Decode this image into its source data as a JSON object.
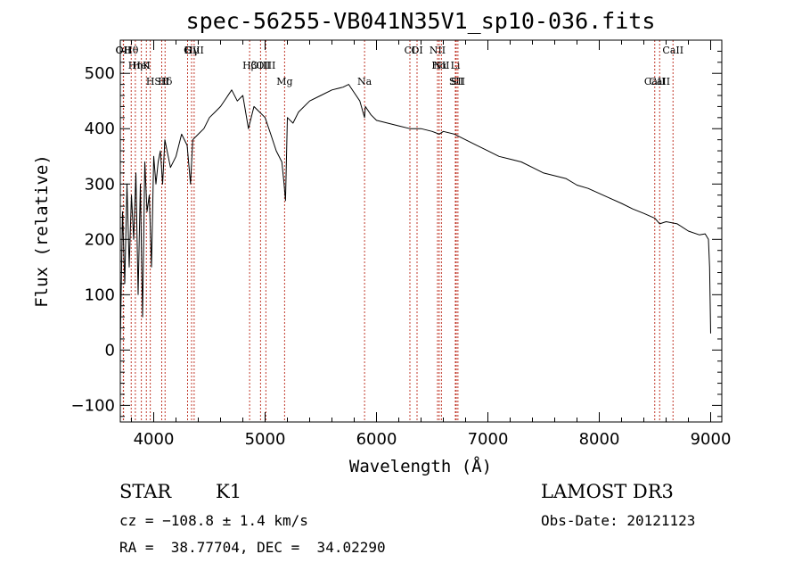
{
  "chart_data": {
    "type": "line",
    "title": "spec-56255-VB041N35V1_sp10-036.fits",
    "xlabel": "Wavelength (Å)",
    "ylabel": "Flux (relative)",
    "xlim": [
      3700,
      9100
    ],
    "ylim": [
      -130,
      560
    ],
    "xticks": [
      4000,
      5000,
      6000,
      7000,
      8000,
      9000
    ],
    "yticks": [
      -100,
      0,
      100,
      200,
      300,
      400,
      500
    ],
    "grid": false,
    "series": [
      {
        "name": "spectrum",
        "x": [
          3700,
          3720,
          3740,
          3760,
          3780,
          3800,
          3820,
          3840,
          3860,
          3880,
          3900,
          3920,
          3940,
          3960,
          3980,
          4000,
          4020,
          4040,
          4060,
          4080,
          4100,
          4150,
          4200,
          4250,
          4300,
          4330,
          4350,
          4400,
          4450,
          4500,
          4550,
          4600,
          4650,
          4700,
          4750,
          4800,
          4850,
          4900,
          4950,
          5000,
          5050,
          5100,
          5150,
          5170,
          5183,
          5200,
          5250,
          5300,
          5400,
          5500,
          5600,
          5700,
          5750,
          5800,
          5850,
          5893,
          5900,
          5950,
          6000,
          6100,
          6200,
          6300,
          6400,
          6500,
          6563,
          6600,
          6700,
          6800,
          6900,
          7000,
          7100,
          7200,
          7300,
          7400,
          7500,
          7600,
          7700,
          7800,
          7900,
          8000,
          8100,
          8200,
          8300,
          8400,
          8500,
          8542,
          8600,
          8700,
          8800,
          8900,
          8950,
          8980,
          8990,
          9000
        ],
        "y": [
          10,
          250,
          120,
          300,
          150,
          280,
          200,
          320,
          100,
          300,
          60,
          340,
          250,
          280,
          150,
          350,
          300,
          340,
          360,
          300,
          380,
          330,
          350,
          390,
          370,
          300,
          380,
          390,
          400,
          420,
          430,
          440,
          455,
          470,
          450,
          460,
          400,
          440,
          430,
          420,
          390,
          360,
          340,
          300,
          270,
          420,
          410,
          430,
          450,
          460,
          470,
          475,
          480,
          465,
          450,
          420,
          440,
          425,
          415,
          410,
          405,
          400,
          400,
          395,
          390,
          395,
          390,
          380,
          370,
          360,
          350,
          345,
          340,
          330,
          320,
          315,
          310,
          298,
          292,
          283,
          274,
          265,
          255,
          247,
          238,
          228,
          232,
          228,
          215,
          208,
          210,
          200,
          150,
          30
        ],
        "color": "#000000"
      }
    ],
    "line_labels": [
      {
        "label": "Hθ",
        "wavelength": 3798
      },
      {
        "label": "K",
        "wavelength": 3934
      },
      {
        "label": "Hδ",
        "wavelength": 4102
      },
      {
        "label": "OIII",
        "wavelength": 4363
      },
      {
        "label": "OIII",
        "wavelength": 4959
      },
      {
        "label": "CaII",
        "wavelength": 8542
      },
      {
        "label": "OII",
        "wavelength": 3727
      },
      {
        "label": "HeI",
        "wavelength": 3889
      },
      {
        "label": "SII",
        "wavelength": 4072
      },
      {
        "label": "Hγ",
        "wavelength": 4340
      },
      {
        "label": "OIII",
        "wavelength": 5007
      },
      {
        "label": "Na",
        "wavelength": 5893
      },
      {
        "label": "CI",
        "wavelength": 6300
      },
      {
        "label": "Hα",
        "wavelength": 6563
      },
      {
        "label": "SII",
        "wavelength": 6716
      },
      {
        "label": "NII",
        "wavelength": 6548
      },
      {
        "label": "Li",
        "wavelength": 6708
      },
      {
        "label": "CaII",
        "wavelength": 8498
      },
      {
        "label": "OII",
        "wavelength": 3729
      },
      {
        "label": "Hη",
        "wavelength": 3835
      },
      {
        "label": "H",
        "wavelength": 3969
      },
      {
        "label": "G",
        "wavelength": 4304
      },
      {
        "label": "Hβ",
        "wavelength": 4861
      },
      {
        "label": "Mg",
        "wavelength": 5175
      },
      {
        "label": "OI",
        "wavelength": 6364
      },
      {
        "label": "NII",
        "wavelength": 6583
      },
      {
        "label": "SII",
        "wavelength": 6731
      },
      {
        "label": "CaII",
        "wavelength": 8662
      }
    ]
  },
  "footer": {
    "object_class": "STAR",
    "subclass": "K1",
    "survey": "LAMOST DR3",
    "cz": "cz = −108.8 ± 1.4 km/s",
    "obs_date": "Obs-Date: 20121123",
    "coords": "RA =  38.77704, DEC =  34.02290"
  }
}
